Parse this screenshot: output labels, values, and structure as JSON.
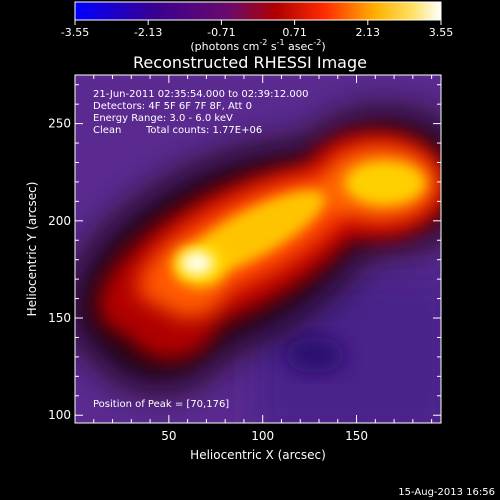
{
  "colorbar": {
    "tick_labels": [
      "-3.55",
      "-2.13",
      "-0.71",
      "0.71",
      "2.13",
      "3.55"
    ],
    "tick_values": [
      -3.55,
      -2.13,
      -0.71,
      0.71,
      2.13,
      3.55
    ],
    "range": [
      -3.55,
      3.55
    ],
    "units_prefix": "(photons cm",
    "units_exp1": "-2",
    "units_mid": " s",
    "units_exp2": "-1",
    "units_mid2": " asec",
    "units_exp3": "-2",
    "units_suffix": ")"
  },
  "chart_data": {
    "type": "heatmap",
    "title": "Reconstructed RHESSI Image",
    "xlabel": "Heliocentric X (arcsec)",
    "ylabel": "Heliocentric Y (arcsec)",
    "xlim": [
      0,
      195
    ],
    "ylim": [
      96,
      275
    ],
    "x_ticks": [
      50,
      100,
      150
    ],
    "y_ticks": [
      100,
      150,
      200,
      250
    ],
    "x_tick_labels": [
      "50",
      "100",
      "150"
    ],
    "y_tick_labels": [
      "100",
      "150",
      "200",
      "250"
    ],
    "colormap": "black-purple-red-yellow-white",
    "peak": [
      70,
      176
    ],
    "annotations": {
      "time_range": "21-Jun-2011 02:35:54.000 to 02:39:12.000",
      "detectors": "Detectors: 4F 5F 6F 7F 8F, Att 0",
      "energy": "Energy Range: 3.0 - 6.0 keV",
      "clean_label": "Clean",
      "total_counts": "Total counts: 1.77E+06",
      "peak_text": "Position of Peak = [70,176]"
    }
  },
  "footer": {
    "timestamp": "15-Aug-2013 16:56"
  }
}
